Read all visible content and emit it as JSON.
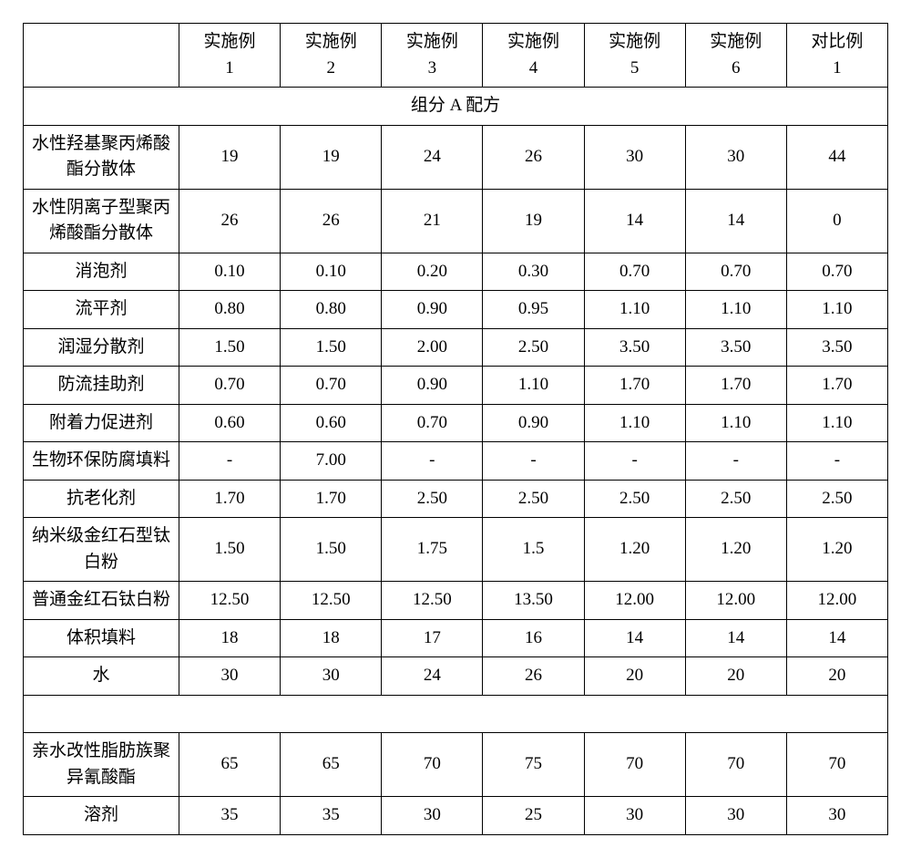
{
  "columns": [
    {
      "line1": "实施例",
      "line2": "1"
    },
    {
      "line1": "实施例",
      "line2": "2"
    },
    {
      "line1": "实施例",
      "line2": "3"
    },
    {
      "line1": "实施例",
      "line2": "4"
    },
    {
      "line1": "实施例",
      "line2": "5"
    },
    {
      "line1": "实施例",
      "line2": "6"
    },
    {
      "line1": "对比例",
      "line2": "1"
    }
  ],
  "section_a_title": "组分 A 配方",
  "rows_a": [
    {
      "label": "水性羟基聚丙烯酸酯分散体",
      "v": [
        "19",
        "19",
        "24",
        "26",
        "30",
        "30",
        "44"
      ]
    },
    {
      "label": "水性阴离子型聚丙烯酸酯分散体",
      "v": [
        "26",
        "26",
        "21",
        "19",
        "14",
        "14",
        "0"
      ]
    },
    {
      "label": "消泡剂",
      "v": [
        "0.10",
        "0.10",
        "0.20",
        "0.30",
        "0.70",
        "0.70",
        "0.70"
      ]
    },
    {
      "label": "流平剂",
      "v": [
        "0.80",
        "0.80",
        "0.90",
        "0.95",
        "1.10",
        "1.10",
        "1.10"
      ]
    },
    {
      "label": "润湿分散剂",
      "v": [
        "1.50",
        "1.50",
        "2.00",
        "2.50",
        "3.50",
        "3.50",
        "3.50"
      ]
    },
    {
      "label": "防流挂助剂",
      "v": [
        "0.70",
        "0.70",
        "0.90",
        "1.10",
        "1.70",
        "1.70",
        "1.70"
      ]
    },
    {
      "label": "附着力促进剂",
      "v": [
        "0.60",
        "0.60",
        "0.70",
        "0.90",
        "1.10",
        "1.10",
        "1.10"
      ]
    },
    {
      "label": "生物环保防腐填料",
      "v": [
        "-",
        "7.00",
        "-",
        "-",
        "-",
        "-",
        "-"
      ]
    },
    {
      "label": "抗老化剂",
      "v": [
        "1.70",
        "1.70",
        "2.50",
        "2.50",
        "2.50",
        "2.50",
        "2.50"
      ]
    },
    {
      "label": "纳米级金红石型钛白粉",
      "v": [
        "1.50",
        "1.50",
        "1.75",
        "1.5",
        "1.20",
        "1.20",
        "1.20"
      ]
    },
    {
      "label": "普通金红石钛白粉",
      "v": [
        "12.50",
        "12.50",
        "12.50",
        "13.50",
        "12.00",
        "12.00",
        "12.00"
      ]
    },
    {
      "label": "体积填料",
      "v": [
        "18",
        "18",
        "17",
        "16",
        "14",
        "14",
        "14"
      ]
    },
    {
      "label": "水",
      "v": [
        "30",
        "30",
        "24",
        "26",
        "20",
        "20",
        "20"
      ]
    }
  ],
  "rows_b": [
    {
      "label": "亲水改性脂肪族聚异氰酸酯",
      "v": [
        "65",
        "65",
        "70",
        "75",
        "70",
        "70",
        "70"
      ]
    },
    {
      "label": "溶剂",
      "v": [
        "35",
        "35",
        "30",
        "25",
        "30",
        "30",
        "30"
      ]
    }
  ]
}
